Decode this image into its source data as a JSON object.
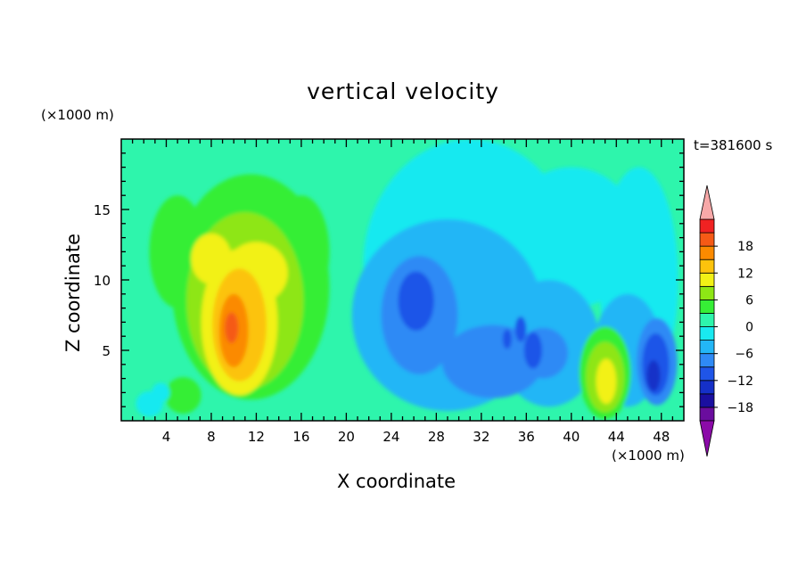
{
  "chart_data": {
    "type": "heatmap",
    "title": "vertical velocity",
    "xlabel": "X coordinate",
    "ylabel": "Z coordinate",
    "x_unit": "(×1000 m)",
    "z_unit": "(×1000 m)",
    "time_label": "t=381600 s",
    "xlim": [
      0,
      50
    ],
    "ylim": [
      0,
      20
    ],
    "x_ticks": [
      4,
      8,
      12,
      16,
      20,
      24,
      28,
      32,
      36,
      40,
      44,
      48
    ],
    "y_ticks": [
      5,
      10,
      15
    ],
    "colorbar": {
      "levels": [
        -21,
        -18,
        -15,
        -12,
        -9,
        -6,
        -3,
        0,
        3,
        6,
        9,
        12,
        15,
        18,
        21
      ],
      "tick_labels": [
        -18,
        -12,
        -6,
        0,
        6,
        12,
        18
      ],
      "colors": [
        "#6a0d9e",
        "#1a0fa0",
        "#1530c8",
        "#1f55e8",
        "#2f8af5",
        "#23b6f6",
        "#19e9f0",
        "#2ef5ac",
        "#36ee36",
        "#8ee615",
        "#f2f116",
        "#fcc30c",
        "#fb8a00",
        "#f55a16",
        "#f02222"
      ],
      "extend_low_color": "#8b0aa8",
      "extend_high_color": "#f7a8a8"
    },
    "background_level": 0,
    "features": [
      {
        "type": "updraft",
        "x": 10,
        "z": 6.5,
        "peak": 14
      },
      {
        "type": "updraft",
        "x": 43,
        "z": 3,
        "peak": 8
      },
      {
        "type": "downdraft",
        "x": 26,
        "z": 8.5,
        "peak": -11
      },
      {
        "type": "downdraft",
        "x": 47.5,
        "z": 4,
        "peak": -11
      },
      {
        "type": "downdraft",
        "x": 37,
        "z": 5,
        "peak": -9
      }
    ]
  }
}
